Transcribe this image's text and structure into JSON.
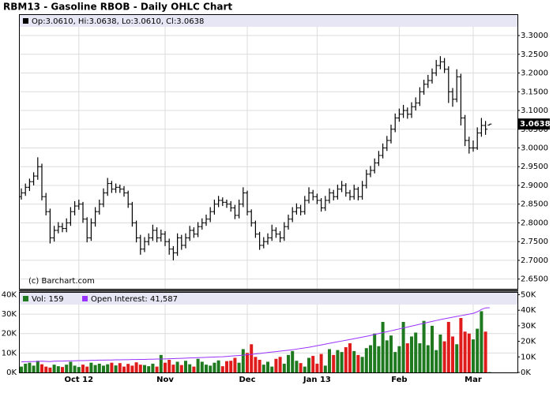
{
  "chart_data": {
    "type": "ohlc",
    "title": "RBM13 - Gasoline RBOB - Daily OHLC Chart",
    "info": "Op:3.0610, Hi:3.0638, Lo:3.0610, Cl:3.0638",
    "last_label": "3.0638",
    "copyright": "(c) Barchart.com",
    "color": "#000000",
    "grid": true,
    "categories": [
      null,
      null,
      null,
      null,
      null,
      null,
      null,
      null,
      null,
      null,
      null,
      null,
      null,
      null,
      "Oct 12",
      null,
      null,
      null,
      null,
      null,
      null,
      null,
      null,
      null,
      null,
      null,
      null,
      null,
      null,
      null,
      null,
      null,
      null,
      null,
      null,
      "Nov",
      null,
      null,
      null,
      null,
      null,
      null,
      null,
      null,
      null,
      null,
      null,
      null,
      null,
      null,
      null,
      null,
      null,
      null,
      null,
      "Dec",
      null,
      null,
      null,
      null,
      null,
      null,
      null,
      null,
      null,
      null,
      null,
      null,
      null,
      null,
      null,
      null,
      "Jan 13",
      null,
      null,
      null,
      null,
      null,
      null,
      null,
      null,
      null,
      null,
      null,
      null,
      null,
      null,
      null,
      null,
      null,
      null,
      null,
      "Feb",
      null,
      null,
      null,
      null,
      null,
      null,
      null,
      null,
      null,
      null,
      null,
      null,
      null,
      null,
      null,
      null,
      null,
      "Mar",
      null,
      null,
      null,
      null
    ],
    "ohlc": [
      [
        2.87,
        2.892,
        2.862,
        2.88
      ],
      [
        2.88,
        2.905,
        2.872,
        2.895
      ],
      [
        2.895,
        2.918,
        2.885,
        2.91
      ],
      [
        2.91,
        2.935,
        2.9,
        2.925
      ],
      [
        2.925,
        2.975,
        2.915,
        2.95
      ],
      [
        2.95,
        2.958,
        2.86,
        2.87
      ],
      [
        2.87,
        2.88,
        2.82,
        2.83
      ],
      [
        2.83,
        2.838,
        2.745,
        2.76
      ],
      [
        2.76,
        2.792,
        2.75,
        2.78
      ],
      [
        2.78,
        2.802,
        2.772,
        2.79
      ],
      [
        2.79,
        2.8,
        2.775,
        2.785
      ],
      [
        2.785,
        2.812,
        2.775,
        2.8
      ],
      [
        2.8,
        2.842,
        2.792,
        2.83
      ],
      [
        2.83,
        2.858,
        2.82,
        2.845
      ],
      [
        2.845,
        2.862,
        2.835,
        2.85
      ],
      [
        2.85,
        2.856,
        2.8,
        2.81
      ],
      [
        2.81,
        2.815,
        2.748,
        2.76
      ],
      [
        2.76,
        2.812,
        2.752,
        2.8
      ],
      [
        2.8,
        2.842,
        2.79,
        2.83
      ],
      [
        2.83,
        2.862,
        2.822,
        2.85
      ],
      [
        2.85,
        2.892,
        2.842,
        2.88
      ],
      [
        2.88,
        2.92,
        2.872,
        2.905
      ],
      [
        2.905,
        2.912,
        2.88,
        2.89
      ],
      [
        2.89,
        2.905,
        2.88,
        2.895
      ],
      [
        2.895,
        2.902,
        2.88,
        2.89
      ],
      [
        2.89,
        2.898,
        2.87,
        2.88
      ],
      [
        2.88,
        2.886,
        2.84,
        2.85
      ],
      [
        2.85,
        2.856,
        2.79,
        2.8
      ],
      [
        2.8,
        2.806,
        2.748,
        2.76
      ],
      [
        2.76,
        2.768,
        2.715,
        2.73
      ],
      [
        2.73,
        2.762,
        2.722,
        2.75
      ],
      [
        2.75,
        2.772,
        2.74,
        2.76
      ],
      [
        2.76,
        2.795,
        2.752,
        2.78
      ],
      [
        2.78,
        2.788,
        2.748,
        2.76
      ],
      [
        2.76,
        2.782,
        2.75,
        2.77
      ],
      [
        2.77,
        2.778,
        2.738,
        2.75
      ],
      [
        2.75,
        2.758,
        2.715,
        2.73
      ],
      [
        2.73,
        2.738,
        2.7,
        2.72
      ],
      [
        2.72,
        2.772,
        2.712,
        2.76
      ],
      [
        2.76,
        2.768,
        2.728,
        2.74
      ],
      [
        2.74,
        2.772,
        2.732,
        2.76
      ],
      [
        2.76,
        2.792,
        2.752,
        2.78
      ],
      [
        2.78,
        2.788,
        2.76,
        2.77
      ],
      [
        2.77,
        2.802,
        2.762,
        2.79
      ],
      [
        2.79,
        2.812,
        2.782,
        2.8
      ],
      [
        2.8,
        2.822,
        2.792,
        2.81
      ],
      [
        2.81,
        2.842,
        2.802,
        2.83
      ],
      [
        2.83,
        2.862,
        2.822,
        2.85
      ],
      [
        2.85,
        2.872,
        2.842,
        2.86
      ],
      [
        2.86,
        2.868,
        2.845,
        2.855
      ],
      [
        2.855,
        2.862,
        2.84,
        2.85
      ],
      [
        2.85,
        2.858,
        2.83,
        2.84
      ],
      [
        2.84,
        2.848,
        2.81,
        2.82
      ],
      [
        2.82,
        2.862,
        2.812,
        2.85
      ],
      [
        2.85,
        2.895,
        2.842,
        2.88
      ],
      [
        2.88,
        2.886,
        2.82,
        2.83
      ],
      [
        2.83,
        2.836,
        2.79,
        2.8
      ],
      [
        2.8,
        2.806,
        2.76,
        2.77
      ],
      [
        2.77,
        2.776,
        2.728,
        2.74
      ],
      [
        2.74,
        2.762,
        2.732,
        2.75
      ],
      [
        2.75,
        2.772,
        2.742,
        2.76
      ],
      [
        2.76,
        2.795,
        2.752,
        2.78
      ],
      [
        2.78,
        2.788,
        2.76,
        2.77
      ],
      [
        2.77,
        2.778,
        2.748,
        2.76
      ],
      [
        2.76,
        2.802,
        2.752,
        2.79
      ],
      [
        2.79,
        2.822,
        2.782,
        2.81
      ],
      [
        2.81,
        2.842,
        2.802,
        2.83
      ],
      [
        2.83,
        2.852,
        2.822,
        2.84
      ],
      [
        2.84,
        2.848,
        2.82,
        2.83
      ],
      [
        2.83,
        2.872,
        2.822,
        2.86
      ],
      [
        2.86,
        2.895,
        2.852,
        2.88
      ],
      [
        2.88,
        2.888,
        2.86,
        2.87
      ],
      [
        2.87,
        2.878,
        2.85,
        2.86
      ],
      [
        2.86,
        2.866,
        2.83,
        2.84
      ],
      [
        2.84,
        2.872,
        2.832,
        2.86
      ],
      [
        2.86,
        2.892,
        2.852,
        2.88
      ],
      [
        2.88,
        2.888,
        2.86,
        2.87
      ],
      [
        2.87,
        2.902,
        2.862,
        2.89
      ],
      [
        2.89,
        2.912,
        2.882,
        2.9
      ],
      [
        2.9,
        2.906,
        2.87,
        2.88
      ],
      [
        2.88,
        2.888,
        2.86,
        2.87
      ],
      [
        2.87,
        2.902,
        2.862,
        2.89
      ],
      [
        2.89,
        2.896,
        2.86,
        2.87
      ],
      [
        2.87,
        2.912,
        2.862,
        2.9
      ],
      [
        2.9,
        2.942,
        2.892,
        2.93
      ],
      [
        2.93,
        2.952,
        2.922,
        2.94
      ],
      [
        2.94,
        2.972,
        2.932,
        2.96
      ],
      [
        2.96,
        2.992,
        2.952,
        2.98
      ],
      [
        2.98,
        3.012,
        2.972,
        3.0
      ],
      [
        3.0,
        3.032,
        2.992,
        3.02
      ],
      [
        3.02,
        3.062,
        3.012,
        3.05
      ],
      [
        3.05,
        3.092,
        3.042,
        3.08
      ],
      [
        3.08,
        3.105,
        3.07,
        3.09
      ],
      [
        3.09,
        3.115,
        3.08,
        3.1
      ],
      [
        3.1,
        3.108,
        3.078,
        3.09
      ],
      [
        3.09,
        3.122,
        3.08,
        3.11
      ],
      [
        3.11,
        3.135,
        3.1,
        3.12
      ],
      [
        3.12,
        3.162,
        3.112,
        3.15
      ],
      [
        3.15,
        3.182,
        3.142,
        3.17
      ],
      [
        3.17,
        3.195,
        3.16,
        3.18
      ],
      [
        3.18,
        3.212,
        3.172,
        3.2
      ],
      [
        3.2,
        3.235,
        3.192,
        3.22
      ],
      [
        3.22,
        3.245,
        3.21,
        3.23
      ],
      [
        3.23,
        3.24,
        3.2,
        3.21
      ],
      [
        3.21,
        3.218,
        3.12,
        3.15
      ],
      [
        3.15,
        3.16,
        3.11,
        3.13
      ],
      [
        3.13,
        3.21,
        3.122,
        3.19
      ],
      [
        3.19,
        3.198,
        3.06,
        3.08
      ],
      [
        3.08,
        3.088,
        3.005,
        3.02
      ],
      [
        3.02,
        3.03,
        2.985,
        3.0
      ],
      [
        3.0,
        3.02,
        2.99,
        3.0
      ],
      [
        3.0,
        3.055,
        2.995,
        3.04
      ],
      [
        3.04,
        3.08,
        3.03,
        3.06
      ],
      [
        3.06,
        3.072,
        3.035,
        3.05
      ],
      [
        3.061,
        3.0638,
        3.061,
        3.0638
      ]
    ],
    "ylim": [
      2.624,
      3.357
    ],
    "yticks": [
      {
        "value": 2.65,
        "label": "2.6500"
      },
      {
        "value": 2.7,
        "label": "2.7000"
      },
      {
        "value": 2.75,
        "label": "2.7500"
      },
      {
        "value": 2.8,
        "label": "2.8000"
      },
      {
        "value": 2.85,
        "label": "2.8500"
      },
      {
        "value": 2.9,
        "label": "2.9000"
      },
      {
        "value": 2.95,
        "label": "2.9500"
      },
      {
        "value": 3.0,
        "label": "3.0000"
      },
      {
        "value": 3.05,
        "label": "3.0500"
      },
      {
        "value": 3.1,
        "label": "3.1000"
      },
      {
        "value": 3.15,
        "label": "3.1500"
      },
      {
        "value": 3.2,
        "label": "3.2000"
      },
      {
        "value": 3.25,
        "label": "3.2500"
      },
      {
        "value": 3.3,
        "label": "3.3000"
      }
    ],
    "volume": {
      "name": "Vol: 159",
      "color": "#1f7a1f",
      "down_color": "#e01b1b",
      "values": [
        3000,
        4500,
        5000,
        3500,
        6000,
        4200,
        3000,
        2500,
        4000,
        3200,
        2800,
        4000,
        5500,
        3500,
        2800,
        4000,
        3000,
        5000,
        3800,
        4500,
        3500,
        4200,
        5000,
        3600,
        4800,
        3000,
        4400,
        3500,
        5200,
        4000,
        3800,
        3200,
        4500,
        3000,
        9000,
        5000,
        6500,
        4000,
        5500,
        3800,
        6000,
        4200,
        3000,
        7000,
        5500,
        4000,
        3500,
        5000,
        6200,
        3200,
        5800,
        6000,
        7500,
        5000,
        12000,
        10000,
        14500,
        8000,
        6500,
        4000,
        5500,
        3000,
        7000,
        8000,
        4500,
        9000,
        11000,
        6000,
        4800,
        3000,
        7500,
        8500,
        4500,
        9500,
        3500,
        12000,
        9000,
        11500,
        10500,
        13000,
        15000,
        11000,
        9000,
        8000,
        12500,
        14000,
        20000,
        13500,
        26000,
        16500,
        19000,
        10500,
        13500,
        26000,
        15000,
        18500,
        20500,
        15000,
        26500,
        14000,
        24000,
        11500,
        19500,
        16000,
        26000,
        18500,
        14500,
        28000,
        21000,
        20000,
        17000,
        22500,
        31500,
        21000,
        159
      ],
      "ylim": [
        0,
        41000
      ],
      "yticks": [
        {
          "value": 0,
          "label": "0K"
        },
        {
          "value": 10000,
          "label": "10K"
        },
        {
          "value": 20000,
          "label": "20K"
        },
        {
          "value": 30000,
          "label": "30K"
        },
        {
          "value": 40000,
          "label": "40K"
        }
      ]
    },
    "open_interest": {
      "name": "Open Interest: 41,587",
      "color": "#9933ff",
      "axis": "y2",
      "values": [
        6800,
        6900,
        7000,
        7000,
        7100,
        7200,
        7100,
        7000,
        7200,
        7300,
        7300,
        7400,
        7500,
        7500,
        7600,
        7600,
        7700,
        7800,
        7800,
        7900,
        7900,
        8000,
        8000,
        8100,
        8100,
        8200,
        8200,
        8300,
        8300,
        8400,
        8400,
        8500,
        8500,
        8600,
        8600,
        8700,
        8800,
        8900,
        9000,
        9100,
        9200,
        9300,
        9400,
        9500,
        9600,
        9700,
        9800,
        9900,
        10000,
        10100,
        10300,
        10500,
        10700,
        10900,
        11100,
        11400,
        11600,
        11900,
        12200,
        12500,
        12800,
        13100,
        13400,
        13700,
        14000,
        14300,
        14600,
        15000,
        15400,
        15800,
        16200,
        16700,
        17200,
        17700,
        18200,
        18700,
        19200,
        19700,
        20200,
        20700,
        21200,
        21700,
        22200,
        22700,
        23200,
        23800,
        24400,
        25000,
        25600,
        26200,
        26800,
        27400,
        28000,
        28600,
        29200,
        29800,
        30400,
        31000,
        31600,
        32200,
        32800,
        33400,
        34000,
        34500,
        35000,
        35500,
        36000,
        36500,
        37000,
        37500,
        38000,
        39000,
        40500,
        41500,
        41587
      ],
      "y2lim": [
        0,
        51250
      ],
      "y2ticks": [
        {
          "value": 0,
          "label": "0K"
        },
        {
          "value": 10000,
          "label": "10K"
        },
        {
          "value": 20000,
          "label": "20K"
        },
        {
          "value": 30000,
          "label": "30K"
        },
        {
          "value": 40000,
          "label": "40K"
        },
        {
          "value": 50000,
          "label": "50K"
        }
      ]
    }
  }
}
